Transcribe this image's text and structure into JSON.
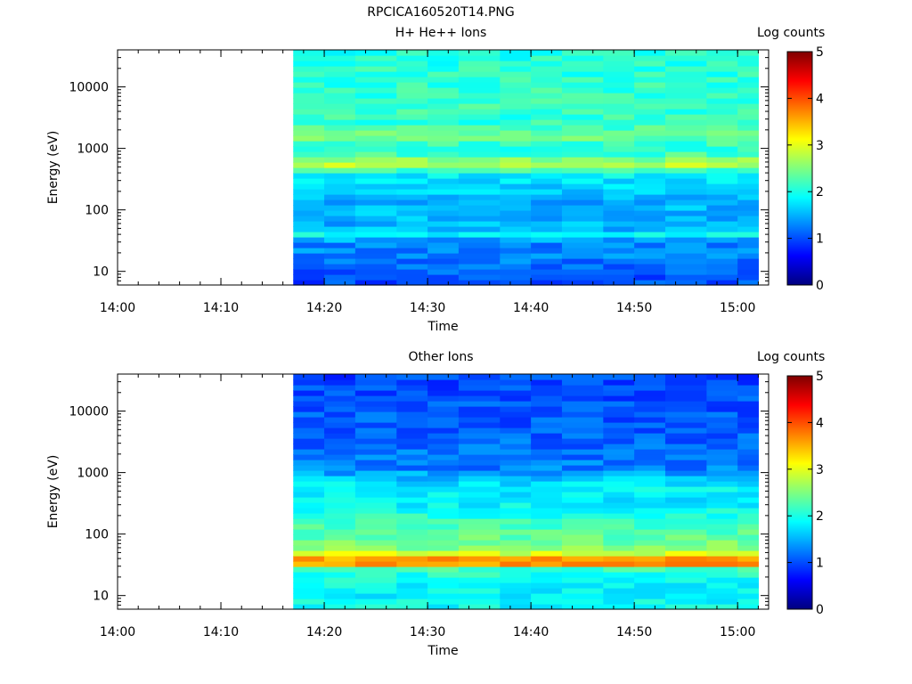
{
  "figure": {
    "title": "RPCICA160520T14.PNG"
  },
  "colormap": [
    "#00007f",
    "#0000ff",
    "#007fff",
    "#00ffff",
    "#7fff7f",
    "#ffff00",
    "#ff7f00",
    "#ff0000",
    "#7f0000"
  ],
  "chart_data": [
    {
      "type": "heatmap",
      "title": "H+ He++ Ions",
      "xlabel": "Time",
      "ylabel": "Energy (eV)",
      "x_tick_labels": [
        "14:00",
        "14:10",
        "14:20",
        "14:30",
        "14:40",
        "14:50",
        "15:00"
      ],
      "x_range": [
        "14:00",
        "15:03"
      ],
      "data_start": "14:17",
      "data_end": "15:02",
      "y_scale": "log",
      "y_range": [
        6,
        40000
      ],
      "y_tick_labels": [
        "10",
        "100",
        "1000",
        "10000"
      ],
      "colorbar": {
        "label": "Log counts",
        "range": [
          0,
          5
        ],
        "tick_labels": [
          "0",
          "1",
          "2",
          "3",
          "4",
          "5"
        ]
      },
      "time_columns": [
        "14:17",
        "14:20",
        "14:23",
        "14:27",
        "14:30",
        "14:33",
        "14:37",
        "14:40",
        "14:43",
        "14:47",
        "14:50",
        "14:53",
        "14:57",
        "15:00"
      ],
      "energy_profile": [
        {
          "energy": 7,
          "log_counts": 1.0
        },
        {
          "energy": 12,
          "log_counts": 1.15
        },
        {
          "energy": 20,
          "log_counts": 1.3
        },
        {
          "energy": 30,
          "log_counts": 1.25
        },
        {
          "energy": 40,
          "log_counts": 1.9
        },
        {
          "energy": 50,
          "log_counts": 1.5
        },
        {
          "energy": 70,
          "log_counts": 1.5
        },
        {
          "energy": 100,
          "log_counts": 1.55
        },
        {
          "energy": 150,
          "log_counts": 1.45
        },
        {
          "energy": 200,
          "log_counts": 1.6
        },
        {
          "energy": 300,
          "log_counts": 1.75
        },
        {
          "energy": 400,
          "log_counts": 1.9
        },
        {
          "energy": 550,
          "log_counts": 2.85
        },
        {
          "energy": 800,
          "log_counts": 2.2
        },
        {
          "energy": 1100,
          "log_counts": 2.05
        },
        {
          "energy": 1600,
          "log_counts": 2.5
        },
        {
          "energy": 2500,
          "log_counts": 2.1
        },
        {
          "energy": 5000,
          "log_counts": 2.15
        },
        {
          "energy": 10000,
          "log_counts": 2.1
        },
        {
          "energy": 20000,
          "log_counts": 2.05
        },
        {
          "energy": 40000,
          "log_counts": 2.0
        }
      ]
    },
    {
      "type": "heatmap",
      "title": "Other Ions",
      "xlabel": "Time",
      "ylabel": "Energy (eV)",
      "x_tick_labels": [
        "14:00",
        "14:10",
        "14:20",
        "14:30",
        "14:40",
        "14:50",
        "15:00"
      ],
      "x_range": [
        "14:00",
        "15:03"
      ],
      "data_start": "14:17",
      "data_end": "15:02",
      "y_scale": "log",
      "y_range": [
        6,
        40000
      ],
      "y_tick_labels": [
        "10",
        "100",
        "1000",
        "10000"
      ],
      "colorbar": {
        "label": "Log counts",
        "range": [
          0,
          5
        ],
        "tick_labels": [
          "0",
          "1",
          "2",
          "3",
          "4",
          "5"
        ]
      },
      "time_columns": [
        "14:17",
        "14:20",
        "14:23",
        "14:27",
        "14:30",
        "14:33",
        "14:37",
        "14:40",
        "14:43",
        "14:47",
        "14:50",
        "14:53",
        "14:57",
        "15:00"
      ],
      "energy_profile": [
        {
          "energy": 7,
          "log_counts": 1.9
        },
        {
          "energy": 12,
          "log_counts": 1.85
        },
        {
          "energy": 20,
          "log_counts": 1.95
        },
        {
          "energy": 28,
          "log_counts": 2.2
        },
        {
          "energy": 35,
          "log_counts": 4.2
        },
        {
          "energy": 45,
          "log_counts": 3.1
        },
        {
          "energy": 60,
          "log_counts": 2.5
        },
        {
          "energy": 90,
          "log_counts": 2.35
        },
        {
          "energy": 150,
          "log_counts": 2.2
        },
        {
          "energy": 250,
          "log_counts": 1.9
        },
        {
          "energy": 400,
          "log_counts": 1.8
        },
        {
          "energy": 600,
          "log_counts": 1.85
        },
        {
          "energy": 800,
          "log_counts": 1.6
        },
        {
          "energy": 1200,
          "log_counts": 1.25
        },
        {
          "energy": 2000,
          "log_counts": 1.2
        },
        {
          "energy": 4000,
          "log_counts": 1.1
        },
        {
          "energy": 10000,
          "log_counts": 1.05
        },
        {
          "energy": 20000,
          "log_counts": 1.0
        },
        {
          "energy": 40000,
          "log_counts": 0.95
        }
      ]
    }
  ]
}
